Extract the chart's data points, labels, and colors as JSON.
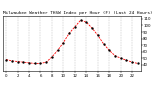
{
  "title": "Milwaukee Weather THSW Index per Hour (F) (Last 24 Hours)",
  "hours": [
    0,
    1,
    2,
    3,
    4,
    5,
    6,
    7,
    8,
    9,
    10,
    11,
    12,
    13,
    14,
    15,
    16,
    17,
    18,
    19,
    20,
    21,
    22,
    23
  ],
  "values": [
    48,
    46,
    45,
    44,
    43,
    42,
    42,
    44,
    52,
    62,
    74,
    88,
    98,
    108,
    105,
    96,
    85,
    72,
    62,
    54,
    50,
    47,
    44,
    42
  ],
  "line_color": "#ff0000",
  "marker_color": "#000000",
  "bg_color": "#ffffff",
  "plot_bg_color": "#ffffff",
  "grid_color": "#999999",
  "ylim": [
    30,
    115
  ],
  "yticks": [
    40,
    50,
    60,
    70,
    80,
    90,
    100,
    110
  ],
  "title_fontsize": 3.2,
  "tick_fontsize": 2.8
}
